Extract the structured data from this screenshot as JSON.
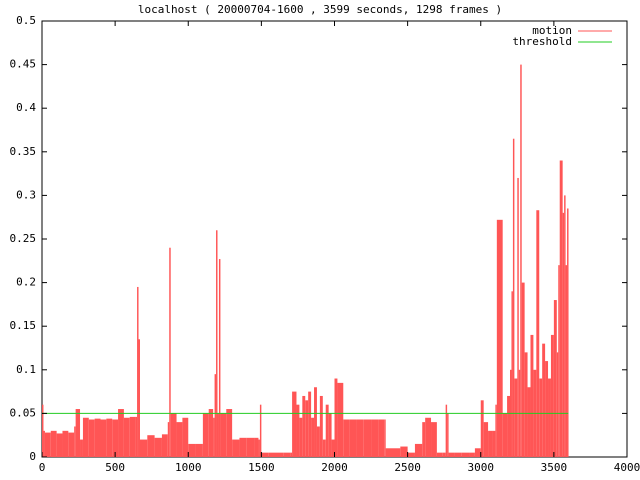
{
  "chart_data": {
    "type": "impulse",
    "title": "localhost ( 20000704-1600 , 3599 seconds, 1298 frames )",
    "xlim": [
      0,
      4000
    ],
    "xticks": [
      0,
      500,
      1000,
      1500,
      2000,
      2500,
      3000,
      3500,
      4000
    ],
    "ylim": [
      0,
      0.5
    ],
    "yticks": [
      0,
      0.05,
      0.1,
      0.15,
      0.2,
      0.25,
      0.3,
      0.35,
      0.4,
      0.45,
      0.5
    ],
    "legend": "top-right",
    "series": [
      {
        "name": "motion",
        "color": "#ff5555",
        "x": [
          0,
          10,
          20,
          60,
          100,
          140,
          180,
          220,
          230,
          260,
          280,
          320,
          360,
          400,
          440,
          480,
          520,
          560,
          600,
          640,
          650,
          660,
          670,
          720,
          770,
          820,
          860,
          870,
          880,
          920,
          960,
          1000,
          1050,
          1100,
          1140,
          1170,
          1180,
          1190,
          1200,
          1210,
          1220,
          1260,
          1300,
          1350,
          1400,
          1450,
          1480,
          1490,
          1500,
          1550,
          1600,
          1650,
          1700,
          1710,
          1740,
          1760,
          1780,
          1800,
          1820,
          1840,
          1860,
          1880,
          1900,
          1920,
          1940,
          1960,
          1980,
          2000,
          2020,
          2060,
          2100,
          2150,
          2200,
          2250,
          2300,
          2340,
          2350,
          2400,
          2450,
          2500,
          2550,
          2600,
          2620,
          2660,
          2700,
          2740,
          2760,
          2770,
          2780,
          2820,
          2870,
          2920,
          2960,
          3000,
          3020,
          3050,
          3080,
          3100,
          3110,
          3150,
          3180,
          3200,
          3210,
          3220,
          3230,
          3250,
          3260,
          3270,
          3280,
          3300,
          3320,
          3340,
          3360,
          3380,
          3400,
          3420,
          3440,
          3460,
          3480,
          3500,
          3520,
          3530,
          3540,
          3560,
          3570,
          3580,
          3590
        ],
        "values": [
          0.06,
          0.03,
          0.028,
          0.03,
          0.027,
          0.03,
          0.028,
          0.035,
          0.055,
          0.02,
          0.045,
          0.043,
          0.044,
          0.043,
          0.044,
          0.043,
          0.055,
          0.045,
          0.046,
          0.046,
          0.195,
          0.135,
          0.02,
          0.025,
          0.022,
          0.026,
          0.04,
          0.24,
          0.05,
          0.04,
          0.045,
          0.015,
          0.015,
          0.05,
          0.055,
          0.045,
          0.095,
          0.26,
          0.05,
          0.227,
          0.05,
          0.055,
          0.02,
          0.022,
          0.022,
          0.022,
          0.02,
          0.06,
          0.005,
          0.005,
          0.005,
          0.005,
          0.005,
          0.075,
          0.06,
          0.045,
          0.07,
          0.065,
          0.075,
          0.045,
          0.08,
          0.035,
          0.07,
          0.02,
          0.06,
          0.05,
          0.02,
          0.09,
          0.085,
          0.043,
          0.043,
          0.043,
          0.043,
          0.043,
          0.043,
          0.043,
          0.01,
          0.01,
          0.012,
          0.005,
          0.015,
          0.04,
          0.045,
          0.04,
          0.005,
          0.005,
          0.06,
          0.05,
          0.005,
          0.005,
          0.005,
          0.005,
          0.01,
          0.065,
          0.04,
          0.03,
          0.03,
          0.06,
          0.272,
          0.05,
          0.07,
          0.1,
          0.19,
          0.365,
          0.09,
          0.32,
          0.1,
          0.45,
          0.2,
          0.12,
          0.08,
          0.14,
          0.1,
          0.283,
          0.09,
          0.13,
          0.11,
          0.09,
          0.14,
          0.18,
          0.12,
          0.22,
          0.34,
          0.28,
          0.3,
          0.22,
          0.285
        ]
      },
      {
        "name": "threshold",
        "color": "#22cc22",
        "x": [
          0,
          3599
        ],
        "values": [
          0.05,
          0.05
        ]
      }
    ]
  }
}
